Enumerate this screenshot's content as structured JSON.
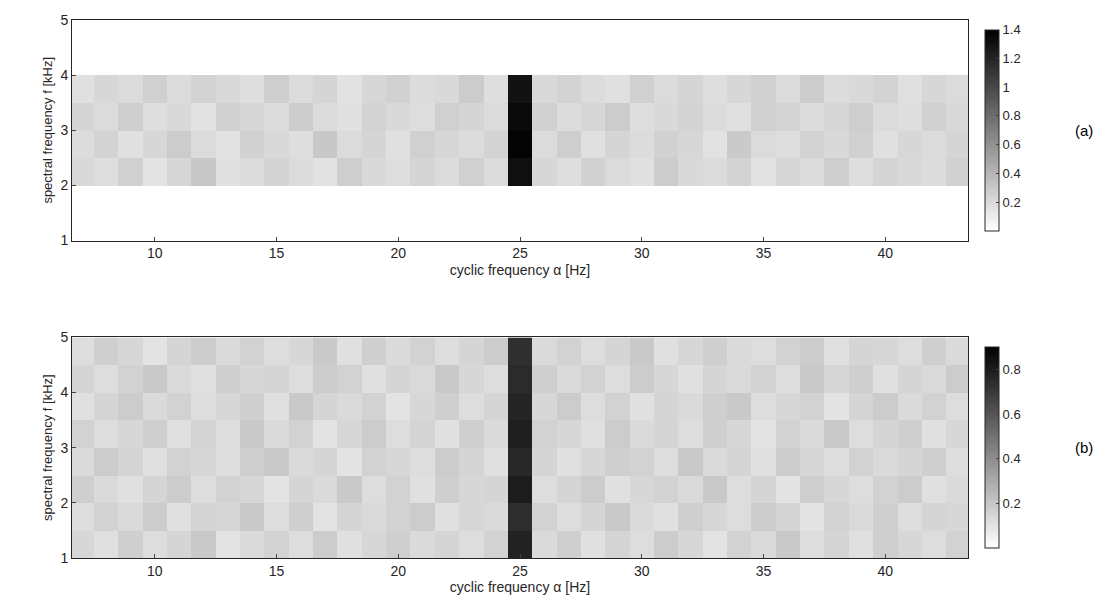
{
  "chart_data": [
    {
      "type": "heatmap",
      "annotation": "(a)",
      "x_label": "cyclic frequency α [Hz]",
      "y_label": "spectral frequency f [kHz]",
      "xlim": [
        6.6,
        43.4
      ],
      "xticks": [
        10,
        15,
        20,
        25,
        30,
        35,
        40
      ],
      "ylim": [
        1,
        5
      ],
      "yticks": [
        1,
        2,
        3,
        4,
        5
      ],
      "zlim": [
        0,
        1.4
      ],
      "zticks": [
        0.2,
        0.4,
        0.6,
        0.8,
        1,
        1.2,
        1.4
      ],
      "x": [
        7,
        8,
        9,
        10,
        11,
        12,
        13,
        14,
        15,
        16,
        17,
        18,
        19,
        20,
        21,
        22,
        23,
        24,
        25,
        26,
        27,
        28,
        29,
        30,
        31,
        32,
        33,
        34,
        35,
        36,
        37,
        38,
        39,
        40,
        41,
        42,
        43
      ],
      "y": [
        1.25,
        1.75,
        2.25,
        2.75,
        3.25,
        3.75,
        4.25,
        4.75
      ],
      "z": [
        [
          0,
          0,
          0,
          0,
          0,
          0,
          0,
          0,
          0,
          0,
          0,
          0,
          0,
          0,
          0,
          0,
          0,
          0,
          0,
          0,
          0,
          0,
          0,
          0,
          0,
          0,
          0,
          0,
          0,
          0,
          0,
          0,
          0,
          0,
          0,
          0,
          0
        ],
        [
          0,
          0,
          0,
          0,
          0,
          0,
          0,
          0,
          0,
          0,
          0,
          0,
          0,
          0,
          0,
          0,
          0,
          0,
          0,
          0,
          0,
          0,
          0,
          0,
          0,
          0,
          0,
          0,
          0,
          0,
          0,
          0,
          0,
          0,
          0,
          0,
          0
        ],
        [
          0.21,
          0.18,
          0.25,
          0.15,
          0.22,
          0.3,
          0.17,
          0.2,
          0.24,
          0.19,
          0.16,
          0.27,
          0.21,
          0.18,
          0.23,
          0.2,
          0.26,
          0.19,
          1.32,
          0.22,
          0.18,
          0.25,
          0.2,
          0.17,
          0.28,
          0.21,
          0.19,
          0.24,
          0.16,
          0.22,
          0.2,
          0.27,
          0.18,
          0.23,
          0.21,
          0.19,
          0.25
        ],
        [
          0.19,
          0.24,
          0.17,
          0.22,
          0.28,
          0.2,
          0.16,
          0.25,
          0.21,
          0.18,
          0.3,
          0.2,
          0.23,
          0.17,
          0.26,
          0.22,
          0.19,
          0.24,
          1.38,
          0.2,
          0.27,
          0.17,
          0.23,
          0.19,
          0.25,
          0.22,
          0.16,
          0.29,
          0.2,
          0.18,
          0.24,
          0.21,
          0.26,
          0.17,
          0.22,
          0.2,
          0.23
        ],
        [
          0.23,
          0.2,
          0.27,
          0.18,
          0.21,
          0.16,
          0.25,
          0.22,
          0.19,
          0.28,
          0.2,
          0.17,
          0.24,
          0.21,
          0.18,
          0.26,
          0.23,
          0.2,
          1.35,
          0.25,
          0.19,
          0.22,
          0.28,
          0.18,
          0.21,
          0.24,
          0.2,
          0.17,
          0.26,
          0.23,
          0.19,
          0.22,
          0.27,
          0.2,
          0.18,
          0.25,
          0.21
        ],
        [
          0.17,
          0.22,
          0.2,
          0.26,
          0.19,
          0.24,
          0.21,
          0.18,
          0.27,
          0.2,
          0.23,
          0.16,
          0.22,
          0.25,
          0.19,
          0.21,
          0.28,
          0.18,
          1.3,
          0.21,
          0.24,
          0.19,
          0.17,
          0.26,
          0.2,
          0.23,
          0.18,
          0.22,
          0.25,
          0.2,
          0.28,
          0.19,
          0.21,
          0.24,
          0.17,
          0.22,
          0.2
        ],
        [
          0,
          0,
          0,
          0,
          0,
          0,
          0,
          0,
          0,
          0,
          0,
          0,
          0,
          0,
          0,
          0,
          0,
          0,
          0,
          0,
          0,
          0,
          0,
          0,
          0,
          0,
          0,
          0,
          0,
          0,
          0,
          0,
          0,
          0,
          0,
          0,
          0
        ],
        [
          0,
          0,
          0,
          0,
          0,
          0,
          0,
          0,
          0,
          0,
          0,
          0,
          0,
          0,
          0,
          0,
          0,
          0,
          0,
          0,
          0,
          0,
          0,
          0,
          0,
          0,
          0,
          0,
          0,
          0,
          0,
          0,
          0,
          0,
          0,
          0,
          0
        ]
      ]
    },
    {
      "type": "heatmap",
      "annotation": "(b)",
      "x_label": "cyclic frequency α [Hz]",
      "y_label": "spectral frequency f [kHz]",
      "xlim": [
        6.6,
        43.4
      ],
      "xticks": [
        10,
        15,
        20,
        25,
        30,
        35,
        40
      ],
      "ylim": [
        1,
        5
      ],
      "yticks": [
        1,
        2,
        3,
        4,
        5
      ],
      "zlim": [
        0,
        0.9
      ],
      "zticks": [
        0.2,
        0.4,
        0.6,
        0.8
      ],
      "x": [
        7,
        8,
        9,
        10,
        11,
        12,
        13,
        14,
        15,
        16,
        17,
        18,
        19,
        20,
        21,
        22,
        23,
        24,
        25,
        26,
        27,
        28,
        29,
        30,
        31,
        32,
        33,
        34,
        35,
        36,
        37,
        38,
        39,
        40,
        41,
        42,
        43
      ],
      "y": [
        1.25,
        1.75,
        2.25,
        2.75,
        3.25,
        3.75,
        4.25,
        4.75
      ],
      "z": [
        [
          0.14,
          0.11,
          0.17,
          0.12,
          0.15,
          0.19,
          0.1,
          0.13,
          0.16,
          0.12,
          0.18,
          0.11,
          0.14,
          0.17,
          0.13,
          0.15,
          0.12,
          0.16,
          0.78,
          0.13,
          0.17,
          0.11,
          0.15,
          0.12,
          0.18,
          0.14,
          0.1,
          0.16,
          0.13,
          0.19,
          0.12,
          0.15,
          0.11,
          0.17,
          0.14,
          0.12,
          0.16
        ],
        [
          0.12,
          0.16,
          0.13,
          0.18,
          0.11,
          0.15,
          0.14,
          0.19,
          0.12,
          0.17,
          0.1,
          0.15,
          0.13,
          0.16,
          0.18,
          0.11,
          0.14,
          0.13,
          0.74,
          0.16,
          0.12,
          0.15,
          0.19,
          0.13,
          0.11,
          0.17,
          0.14,
          0.12,
          0.18,
          0.15,
          0.1,
          0.16,
          0.13,
          0.17,
          0.12,
          0.15,
          0.14
        ],
        [
          0.17,
          0.13,
          0.11,
          0.15,
          0.18,
          0.12,
          0.16,
          0.14,
          0.1,
          0.15,
          0.13,
          0.19,
          0.12,
          0.16,
          0.11,
          0.17,
          0.14,
          0.15,
          0.8,
          0.12,
          0.15,
          0.18,
          0.11,
          0.14,
          0.16,
          0.13,
          0.19,
          0.12,
          0.15,
          0.1,
          0.17,
          0.14,
          0.12,
          0.16,
          0.18,
          0.11,
          0.13
        ],
        [
          0.13,
          0.18,
          0.15,
          0.11,
          0.16,
          0.14,
          0.12,
          0.17,
          0.19,
          0.13,
          0.15,
          0.1,
          0.16,
          0.14,
          0.12,
          0.18,
          0.15,
          0.11,
          0.76,
          0.15,
          0.11,
          0.14,
          0.17,
          0.16,
          0.12,
          0.19,
          0.13,
          0.15,
          0.11,
          0.18,
          0.14,
          0.12,
          0.16,
          0.13,
          0.15,
          0.17,
          0.12
        ],
        [
          0.16,
          0.12,
          0.14,
          0.17,
          0.11,
          0.15,
          0.12,
          0.19,
          0.13,
          0.16,
          0.1,
          0.14,
          0.18,
          0.12,
          0.15,
          0.11,
          0.17,
          0.13,
          0.79,
          0.16,
          0.14,
          0.11,
          0.18,
          0.13,
          0.15,
          0.12,
          0.17,
          0.14,
          0.1,
          0.16,
          0.13,
          0.19,
          0.12,
          0.15,
          0.17,
          0.11,
          0.14
        ],
        [
          0.11,
          0.15,
          0.18,
          0.13,
          0.16,
          0.12,
          0.14,
          0.17,
          0.11,
          0.19,
          0.15,
          0.13,
          0.16,
          0.1,
          0.14,
          0.17,
          0.12,
          0.15,
          0.77,
          0.14,
          0.18,
          0.12,
          0.16,
          0.11,
          0.15,
          0.13,
          0.17,
          0.19,
          0.12,
          0.14,
          0.16,
          0.1,
          0.15,
          0.18,
          0.13,
          0.16,
          0.12
        ],
        [
          0.15,
          0.12,
          0.16,
          0.19,
          0.13,
          0.11,
          0.17,
          0.14,
          0.15,
          0.12,
          0.18,
          0.16,
          0.11,
          0.15,
          0.13,
          0.19,
          0.14,
          0.12,
          0.75,
          0.17,
          0.13,
          0.16,
          0.12,
          0.18,
          0.14,
          0.11,
          0.15,
          0.13,
          0.16,
          0.12,
          0.19,
          0.14,
          0.17,
          0.11,
          0.15,
          0.13,
          0.18
        ],
        [
          0.12,
          0.17,
          0.14,
          0.1,
          0.15,
          0.18,
          0.13,
          0.16,
          0.12,
          0.14,
          0.19,
          0.11,
          0.17,
          0.13,
          0.16,
          0.12,
          0.15,
          0.18,
          0.73,
          0.13,
          0.16,
          0.12,
          0.15,
          0.19,
          0.11,
          0.14,
          0.17,
          0.13,
          0.12,
          0.16,
          0.18,
          0.11,
          0.15,
          0.14,
          0.12,
          0.17,
          0.13
        ]
      ]
    }
  ]
}
